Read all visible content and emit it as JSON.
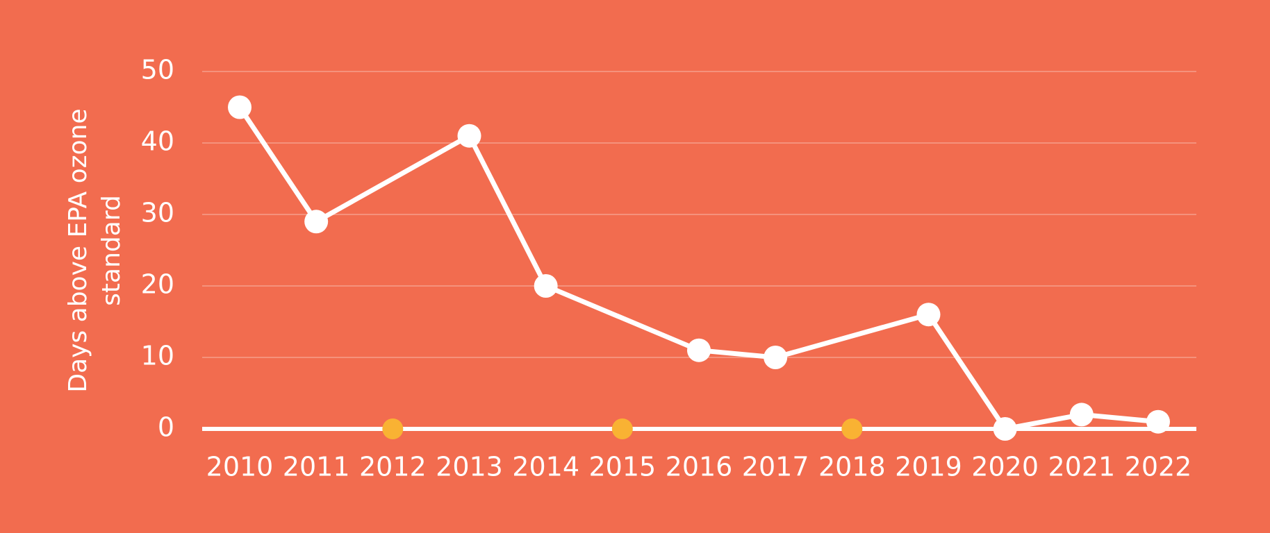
{
  "chart_data": {
    "type": "line",
    "y_label": "Days above EPA ozone standard",
    "xlim": [
      2010,
      2022
    ],
    "xticks": [
      2010,
      2011,
      2012,
      2013,
      2014,
      2015,
      2016,
      2017,
      2018,
      2019,
      2020,
      2021,
      2022
    ],
    "ylim": [
      0,
      50
    ],
    "yticks": [
      0,
      10,
      20,
      30,
      40,
      50
    ],
    "grid": true,
    "series": [
      {
        "color": "#ffffff",
        "x": [
          2010,
          2011,
          2013,
          2014,
          2016,
          2017,
          2019,
          2020,
          2021,
          2022
        ],
        "values": [
          45,
          29,
          41,
          20,
          11,
          10,
          16,
          0,
          2,
          1
        ]
      },
      {
        "color": "#f9b233",
        "style": "markers",
        "x": [
          2012,
          2015,
          2018
        ],
        "values": [
          0,
          0,
          0
        ]
      }
    ]
  }
}
